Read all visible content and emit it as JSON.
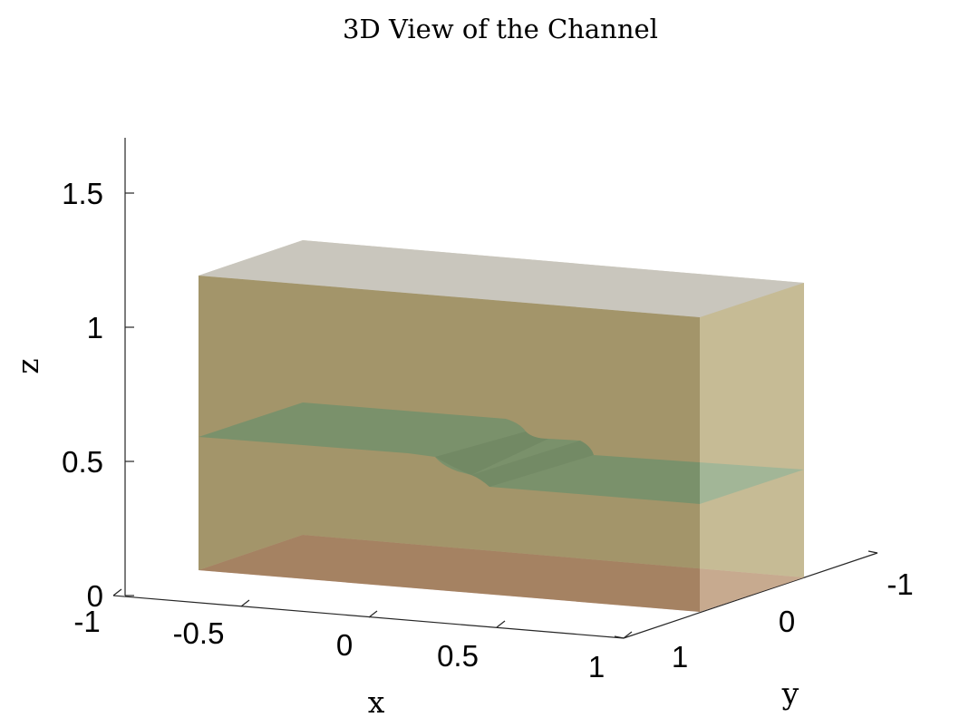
{
  "chart_data": {
    "type": "surface",
    "title": "3D View of the Channel",
    "xlabel": "x",
    "ylabel": "y",
    "zlabel": "z",
    "xlim": [
      -1,
      1
    ],
    "ylim": [
      -1,
      1
    ],
    "zlim": [
      0,
      1.7
    ],
    "x_ticks": [
      "-1",
      "-0.5",
      "0",
      "0.5",
      "1"
    ],
    "y_ticks": [
      "-1",
      "0",
      "1"
    ],
    "z_ticks": [
      "0",
      "0.5",
      "1",
      "1.5"
    ],
    "grid": false,
    "box": {
      "x_range": [
        -0.75,
        0.75
      ],
      "y_range": [
        -0.6,
        0.6
      ],
      "z_range": [
        0,
        1.2
      ]
    },
    "surfaces": [
      {
        "name": "bottom",
        "z": 0,
        "color": "#c98a8a"
      },
      {
        "name": "top",
        "z": 1.2,
        "color": "#bdbdbd"
      },
      {
        "name": "side-walls",
        "color": "#8a7a45"
      },
      {
        "name": "interface",
        "color": "#4ab0a8",
        "z_left": 0.6,
        "z_right": 0.5,
        "step_centers_x": [
          -0.15,
          0.1
        ],
        "step_width": 0.08
      }
    ]
  }
}
